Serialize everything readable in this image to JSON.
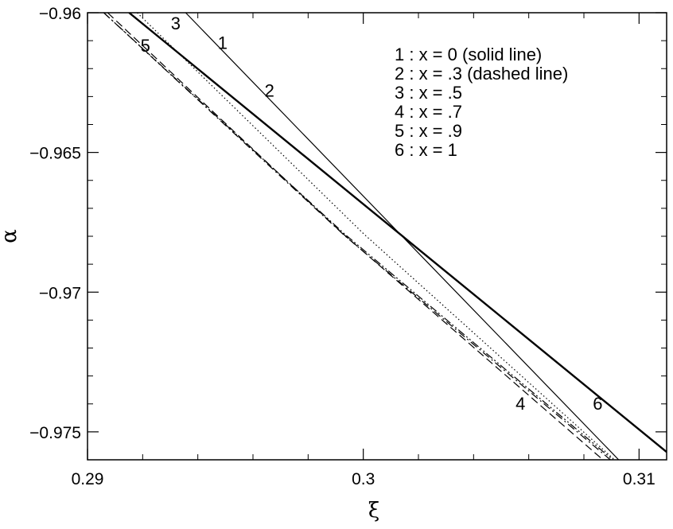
{
  "chart_data": {
    "type": "line",
    "title": "",
    "xlabel": "ξ",
    "ylabel": "α",
    "xlim": [
      0.29,
      0.311
    ],
    "ylim": [
      -0.976,
      -0.96
    ],
    "x_ticks": [
      {
        "value": 0.29,
        "label": "0.29"
      },
      {
        "value": 0.3,
        "label": "0.3"
      },
      {
        "value": 0.31,
        "label": "0.31"
      }
    ],
    "y_ticks": [
      {
        "value": -0.96,
        "label": "−0.96"
      },
      {
        "value": -0.965,
        "label": "−0.965"
      },
      {
        "value": -0.97,
        "label": "−0.97"
      },
      {
        "value": -0.975,
        "label": "−0.975"
      }
    ],
    "grid": false,
    "legend_position": "top-right",
    "legend": [
      "1 : x = 0 (solid line)",
      "2 : x = .3 (dashed line)",
      "3 : x = .5",
      "4 : x = .7",
      "5 : x = .9",
      "6 : x = 1"
    ],
    "series": [
      {
        "curve": "1",
        "style": "solid",
        "width": 1.2,
        "x": [
          0.29356,
          0.30926
        ],
        "y": [
          -0.96,
          -0.976
        ]
      },
      {
        "curve": "2",
        "style": "dashed",
        "width": 1.2,
        "x": [
          0.29073,
          0.29925,
          0.30869
        ],
        "y": [
          -0.96,
          -0.9679,
          -0.976
        ]
      },
      {
        "curve": "3",
        "style": "dotted",
        "width": 1.2,
        "x": [
          0.2918,
          0.3,
          0.30911
        ],
        "y": [
          -0.96,
          -0.9679,
          -0.976
        ]
      },
      {
        "curve": "4",
        "style": "dashdotdot",
        "width": 1.2,
        "x": [
          0.29059,
          0.2993,
          0.30905
        ],
        "y": [
          -0.96,
          -0.9679,
          -0.976
        ]
      },
      {
        "curve": "5",
        "style": "dashdot",
        "width": 1.2,
        "x": [
          0.29059,
          0.29935,
          0.30896
        ],
        "y": [
          -0.96,
          -0.968,
          -0.976
        ]
      },
      {
        "curve": "6",
        "style": "solid",
        "width": 2.4,
        "x": [
          0.29151,
          0.311
        ],
        "y": [
          -0.96,
          -0.97572
        ]
      }
    ],
    "curve_labels": [
      {
        "text": "1",
        "x": 0.2949,
        "y": -0.9613
      },
      {
        "text": "2",
        "x": 0.2966,
        "y": -0.963
      },
      {
        "text": "3",
        "x": 0.2932,
        "y": -0.9606
      },
      {
        "text": "4",
        "x": 0.3057,
        "y": -0.9742
      },
      {
        "text": "5",
        "x": 0.2921,
        "y": -0.9614
      },
      {
        "text": "6",
        "x": 0.3085,
        "y": -0.9742
      }
    ]
  }
}
